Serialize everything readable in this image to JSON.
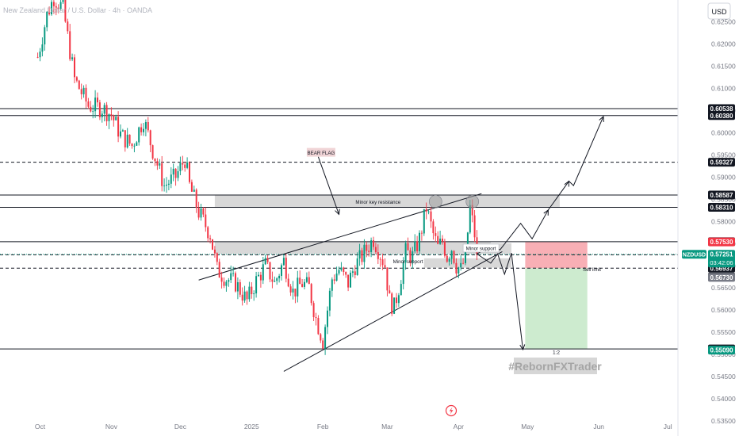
{
  "header": {
    "title": "New Zealand Dollar / U.S. Dollar · 4h · OANDA",
    "currency_button": "USD"
  },
  "colors": {
    "up": "#089981",
    "down": "#f23645",
    "zone": "#c8c8c8",
    "stop_zone": "#f7a6ad",
    "target_zone": "#cdebcf",
    "current_price": "#089981",
    "dark_label": "#131722",
    "grey_label": "#787b86"
  },
  "chart_data": {
    "type": "candlestick",
    "title": "New Zealand Dollar / U.S. Dollar · 4h · OANDA",
    "y_axis": {
      "range": [
        0.53473,
        0.62987
      ],
      "ticks": [
        0.625,
        0.62,
        0.615,
        0.61,
        0.605,
        0.6,
        0.595,
        0.59,
        0.585,
        0.58,
        0.575,
        0.57,
        0.565,
        0.56,
        0.555,
        0.55,
        0.545,
        0.54,
        0.535
      ],
      "tick_labels": [
        "0.62500",
        "0.62000",
        "0.61500",
        "0.61000",
        "0.60500",
        "0.60000",
        "0.59500",
        "0.59000",
        "0.58500",
        "0.58000",
        "0.57500",
        "0.57000",
        "0.56500",
        "0.56000",
        "0.55500",
        "0.55000",
        "0.54500",
        "0.54000",
        "0.53500"
      ]
    },
    "x_axis": {
      "ticks": [
        {
          "label": "Oct",
          "pos": 1
        },
        {
          "label": "Nov",
          "pos": 32
        },
        {
          "label": "Dec",
          "pos": 62
        },
        {
          "label": "2025",
          "pos": 93
        },
        {
          "label": "Feb",
          "pos": 124
        },
        {
          "label": "Mar",
          "pos": 152
        },
        {
          "label": "Apr",
          "pos": 183
        },
        {
          "label": "May",
          "pos": 213
        },
        {
          "label": "Jun",
          "pos": 244
        },
        {
          "label": "Jul",
          "pos": 274
        }
      ]
    },
    "path": [
      [
        0,
        0.617
      ],
      [
        4,
        0.6265
      ],
      [
        7,
        0.6305
      ],
      [
        11,
        0.628
      ],
      [
        16,
        0.612
      ],
      [
        22,
        0.606
      ],
      [
        28,
        0.6055
      ],
      [
        32,
        0.604
      ],
      [
        36,
        0.5995
      ],
      [
        41,
        0.597
      ],
      [
        46,
        0.603
      ],
      [
        50,
        0.596
      ],
      [
        55,
        0.588
      ],
      [
        60,
        0.59
      ],
      [
        64,
        0.594
      ],
      [
        66,
        0.588
      ],
      [
        70,
        0.582
      ],
      [
        75,
        0.577
      ],
      [
        78,
        0.569
      ],
      [
        82,
        0.567
      ],
      [
        86,
        0.566
      ],
      [
        91,
        0.562
      ],
      [
        95,
        0.5665
      ],
      [
        99,
        0.57
      ],
      [
        103,
        0.566
      ],
      [
        107,
        0.571
      ],
      [
        111,
        0.564
      ],
      [
        115,
        0.566
      ],
      [
        118,
        0.565
      ],
      [
        121,
        0.558
      ],
      [
        124,
        0.553
      ],
      [
        128,
        0.567
      ],
      [
        131,
        0.569
      ],
      [
        135,
        0.566
      ],
      [
        138,
        0.57
      ],
      [
        141,
        0.572
      ],
      [
        144,
        0.5745
      ],
      [
        146,
        0.576
      ],
      [
        149,
        0.5725
      ],
      [
        151,
        0.57
      ],
      [
        153,
        0.562
      ],
      [
        155,
        0.5605
      ],
      [
        157,
        0.565
      ],
      [
        160,
        0.573
      ],
      [
        163,
        0.572
      ],
      [
        166,
        0.576
      ],
      [
        169,
        0.583
      ],
      [
        172,
        0.577
      ],
      [
        174,
        0.574
      ],
      [
        176,
        0.5755
      ],
      [
        178,
        0.572
      ],
      [
        180,
        0.574
      ],
      [
        182,
        0.57
      ],
      [
        184,
        0.569
      ],
      [
        186,
        0.572
      ],
      [
        188,
        0.583
      ],
      [
        190,
        0.577
      ],
      [
        191,
        0.5725
      ]
    ],
    "last_bar": 191,
    "last_close": 0.57251,
    "future_until": 280,
    "levels": [
      {
        "value": 0.60538,
        "label": "0.60538",
        "style": "solid",
        "label_style": "dark"
      },
      {
        "value": 0.6038,
        "label": "0.60380",
        "style": "solid",
        "label_style": "dark"
      },
      {
        "value": 0.59327,
        "label": "0.59327",
        "style": "dashed",
        "label_style": "dark"
      },
      {
        "value": 0.58587,
        "label": "0.58587",
        "style": "solid",
        "label_style": "dark"
      },
      {
        "value": 0.5831,
        "label": "0.58310",
        "style": "solid",
        "label_style": "dark"
      },
      {
        "value": 0.57534,
        "label": "0.57534",
        "style": "solid",
        "label_style": "dark"
      },
      {
        "value": 0.57239,
        "label": "0.57239",
        "style": "dashed",
        "label_style": "dark"
      },
      {
        "value": 0.56937,
        "label": "0.56937",
        "style": "dashed",
        "label_style": "dark"
      },
      {
        "value": 0.55117,
        "label": "0.55117",
        "style": "solid",
        "label_style": "dark"
      }
    ],
    "price_labels": [
      {
        "value": 0.5753,
        "label": "0.57530",
        "style": "red"
      },
      {
        "value": 0.5674,
        "label": "0.56740",
        "style": "dark"
      },
      {
        "value": 0.5673,
        "label": "0.56730",
        "style": "grey"
      },
      {
        "value": 0.5509,
        "label": "0.55090",
        "style": "green"
      }
    ],
    "current_price": {
      "symbol": "NZDUSD",
      "value": 0.57251,
      "label": "0.57251",
      "countdown": "03:42:06"
    },
    "zones": [
      {
        "name": "Minor key resistance",
        "from_bar": 77,
        "to_bar": 227,
        "low": 0.583,
        "high": 0.5858
      },
      {
        "name": "Minor support",
        "from_bar": 77,
        "to_bar": 197,
        "low": 0.5726,
        "high": 0.5754
      },
      {
        "name": "Minor support",
        "from_bar": 197,
        "to_bar": 206,
        "low": 0.5726,
        "high": 0.575
      },
      {
        "name": "Minor support",
        "from_bar": 168,
        "to_bar": 206,
        "low": 0.5695,
        "high": 0.5716
      }
    ],
    "trade": {
      "from_bar": 212,
      "to_bar": 239,
      "entry": 0.56937,
      "stop": 0.57534,
      "target": 0.55117,
      "ratio_label": "1:2",
      "entry_label": "Sell limit"
    },
    "annotations": {
      "bear_flag": "BEAR FLAG",
      "minor_key_resistance": "Minor key resistance",
      "minor_support_right": "Minor support",
      "minor_support_left": "Minor support",
      "sell_limit": "Sell limit",
      "ratio": "1:2"
    },
    "channel": {
      "upper": [
        [
          70,
          0.5667
        ],
        [
          193,
          0.5862
        ]
      ],
      "lower": [
        [
          107,
          0.5461
        ],
        [
          202,
          0.5731
        ]
      ]
    }
  },
  "watermark": "#RebornFXTrader"
}
